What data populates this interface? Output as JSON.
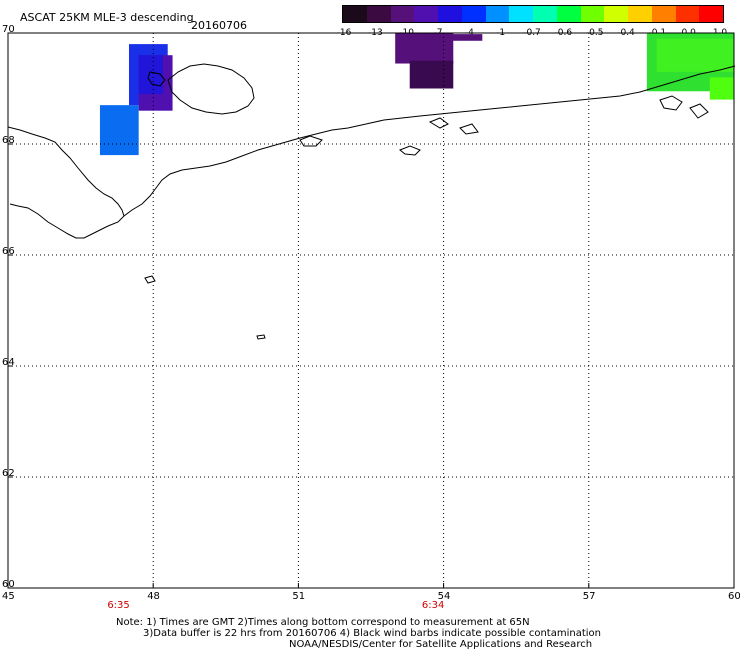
{
  "header": {
    "title": "ASCAT 25KM MLE-3 descending",
    "date": "20160706"
  },
  "colorbar": {
    "labels": [
      "-16",
      "-13",
      "-10",
      "-7",
      "-4",
      "-1",
      "-0.7",
      "-0.6",
      "-0.5",
      "-0.4",
      "-0.1",
      "0.0",
      "1.0"
    ],
    "colors": [
      "#1a0a1a",
      "#3a0a40",
      "#55107a",
      "#5010b0",
      "#2010e0",
      "#0030ff",
      "#0090ff",
      "#00e0ff",
      "#00ffb0",
      "#00ff40",
      "#70ff00",
      "#d0ff00",
      "#ffd000",
      "#ff8000",
      "#ff3000",
      "#ff0000"
    ]
  },
  "axes": {
    "lat_labels": [
      "70",
      "68",
      "66",
      "64",
      "62",
      "60"
    ],
    "lon_labels": [
      "45",
      "48",
      "51",
      "54",
      "57",
      "60"
    ],
    "lat_values": [
      70,
      68,
      66,
      64,
      62,
      60
    ],
    "lon_values": [
      45,
      48,
      51,
      54,
      57,
      60
    ]
  },
  "times": [
    {
      "label": "6:35",
      "lon": 47.3
    },
    {
      "label": "6:34",
      "lon": 53.8
    }
  ],
  "swath_cells": [
    {
      "lon0": 46.9,
      "lon1": 47.7,
      "lat0": 67.8,
      "lat1": 68.7,
      "color": "#0a6cf0"
    },
    {
      "lon0": 47.5,
      "lon1": 48.3,
      "lat0": 68.7,
      "lat1": 69.8,
      "color": "#1a30e8"
    },
    {
      "lon0": 47.7,
      "lon1": 48.4,
      "lat0": 68.6,
      "lat1": 69.6,
      "color": "#5010b0"
    },
    {
      "lon0": 47.7,
      "lon1": 48.2,
      "lat0": 68.9,
      "lat1": 69.6,
      "color": "#2015d8"
    },
    {
      "lon0": 53.0,
      "lon1": 54.2,
      "lat0": 69.45,
      "lat1": 70.0,
      "color": "#55107a"
    },
    {
      "lon0": 53.3,
      "lon1": 54.2,
      "lat0": 69.0,
      "lat1": 69.5,
      "color": "#3a0a50"
    },
    {
      "lon0": 53.6,
      "lon1": 54.8,
      "lat0": 69.86,
      "lat1": 69.98,
      "color": "#55107a"
    },
    {
      "lon0": 58.2,
      "lon1": 60.0,
      "lat0": 68.95,
      "lat1": 70.0,
      "color": "#30e030"
    },
    {
      "lon0": 58.4,
      "lon1": 60.0,
      "lat0": 69.3,
      "lat1": 69.9,
      "color": "#40f020"
    },
    {
      "lon0": 59.5,
      "lon1": 60.0,
      "lat0": 68.8,
      "lat1": 69.2,
      "color": "#50ff10"
    }
  ],
  "footer": {
    "note_line1": "Note: 1) Times are GMT 2)Times along bottom correspond to measurement at 65N",
    "note_line2": "3)Data buffer is 22 hrs from 20160706 4) Black wind barbs indicate possible contamination",
    "credit": "NOAA/NESDIS/Center for Satellite Applications and Research"
  }
}
